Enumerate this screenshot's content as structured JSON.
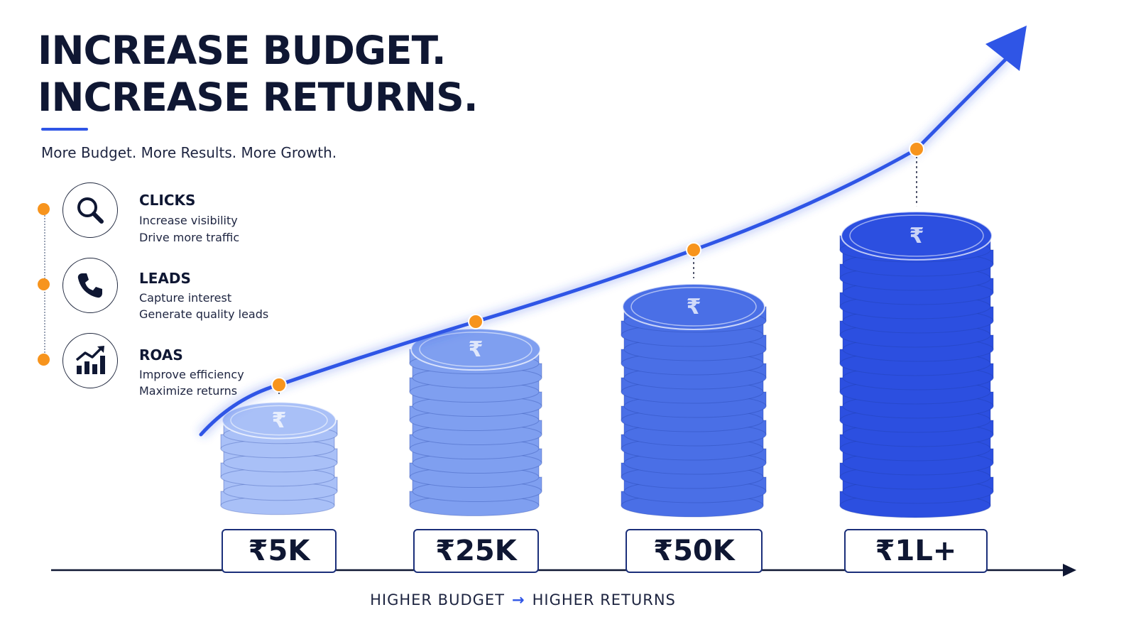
{
  "header": {
    "title_line1": "INCREASE BUDGET.",
    "title_line2": "INCREASE RETURNS.",
    "subtitle": "More Budget. More Results. More Growth."
  },
  "benefits": [
    {
      "icon": "search-icon",
      "title": "CLICKS",
      "line1": "Increase visibility",
      "line2": "Drive more traffic"
    },
    {
      "icon": "phone-icon",
      "title": "LEADS",
      "line1": "Capture interest",
      "line2": "Generate quality leads"
    },
    {
      "icon": "growth-chart-icon",
      "title": "ROAS",
      "line1": "Improve efficiency",
      "line2": "Maximize returns"
    }
  ],
  "chart_data": {
    "type": "bar",
    "categories": [
      "₹5K",
      "₹25K",
      "₹50K",
      "₹1L+"
    ],
    "values": [
      5,
      25,
      50,
      100
    ],
    "value_unit": "thousand INR",
    "series": [
      {
        "values": [
          5,
          25,
          50,
          100
        ]
      }
    ],
    "xlabel": "",
    "ylabel": "",
    "grid": false,
    "legend": "none",
    "trend": "rising curve with arrow over the coin stacks",
    "colors": {
      "coin_light": "#a9c0f7",
      "coin_mid": "#7f9ff0",
      "coin_strong": "#4a6fe6",
      "coin_deep": "#2c4fe0",
      "trend_line": "#2f55e6",
      "marker": "#f7941d",
      "axis": "#0f1733"
    }
  },
  "footer": {
    "left": "HIGHER BUDGET",
    "arrow": "→",
    "right": "HIGHER RETURNS"
  }
}
